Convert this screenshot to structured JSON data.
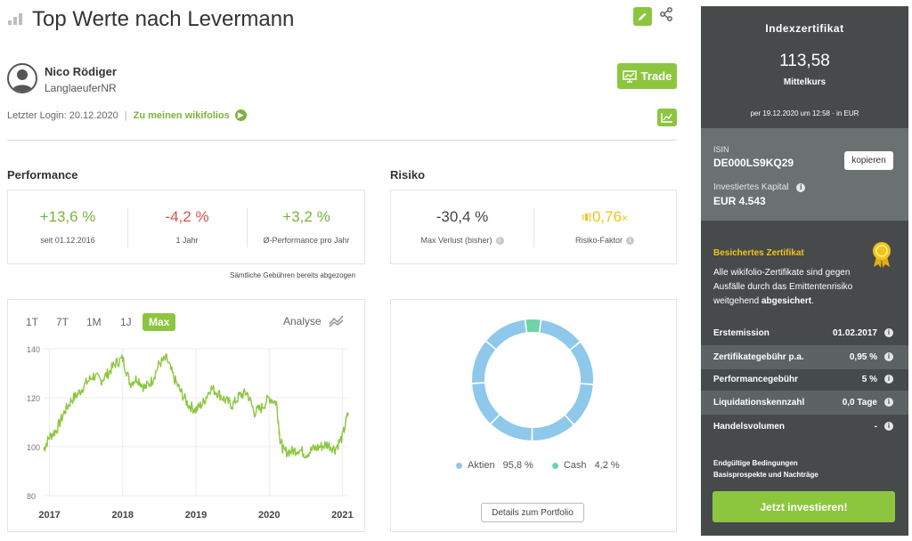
{
  "header": {
    "title": "Top Werte nach Levermann",
    "edit_icon": "pencil-icon",
    "share_icon": "share-icon"
  },
  "author": {
    "name": "Nico Rödiger",
    "handle": "LanglaeuferNR",
    "avatar_icon": "user-avatar-icon"
  },
  "trade_button": {
    "label": "Trade"
  },
  "login": {
    "text": "Letzter Login: 20.12.2020",
    "separator": "|",
    "link": "Zu meinen wikifolios"
  },
  "performance": {
    "heading": "Performance",
    "items": [
      {
        "value": "+13,6 %",
        "label": "seit 01.12.2016"
      },
      {
        "value": "-4,2 %",
        "label": "1 Jahr"
      },
      {
        "value": "+3,2 %",
        "label": "Ø-Performance pro Jahr"
      }
    ],
    "note": "Sämtliche Gebühren bereits abgezogen"
  },
  "risk": {
    "heading": "Risiko",
    "items": [
      {
        "value": "-30,4 %",
        "label": "Max Verlust (bisher)"
      },
      {
        "value": "0,76",
        "suffix": "×",
        "label": "Risiko-Faktor"
      }
    ]
  },
  "chart_controls": {
    "ranges": [
      "1T",
      "7T",
      "1M",
      "1J",
      "Max"
    ],
    "selected": "Max",
    "analyse": "Analyse"
  },
  "chart_data": [
    {
      "type": "line",
      "title": "",
      "xlabel": "",
      "ylabel": "",
      "x_ticks": [
        "2017",
        "2018",
        "2019",
        "2020",
        "2021"
      ],
      "y_ticks": [
        80,
        100,
        120,
        140
      ],
      "ylim": [
        80,
        140
      ],
      "xlim": [
        2016.92,
        2021.08
      ],
      "grid": true,
      "series": [
        {
          "color": "#8cc63f",
          "x": [
            2016.92,
            2017.0,
            2017.1,
            2017.2,
            2017.3,
            2017.4,
            2017.5,
            2017.6,
            2017.7,
            2017.8,
            2017.9,
            2018.0,
            2018.1,
            2018.2,
            2018.3,
            2018.4,
            2018.5,
            2018.6,
            2018.7,
            2018.8,
            2018.9,
            2019.0,
            2019.1,
            2019.2,
            2019.3,
            2019.4,
            2019.5,
            2019.6,
            2019.7,
            2019.8,
            2019.9,
            2020.0,
            2020.1,
            2020.15,
            2020.2,
            2020.3,
            2020.4,
            2020.5,
            2020.6,
            2020.7,
            2020.8,
            2020.9,
            2021.0,
            2021.08
          ],
          "values": [
            99,
            104,
            107,
            114,
            119,
            122,
            126,
            129,
            127,
            130,
            134,
            136,
            126,
            128,
            124,
            127,
            134,
            136,
            128,
            122,
            117,
            115,
            118,
            124,
            122,
            119,
            117,
            121,
            122,
            114,
            116,
            120,
            118,
            103,
            98,
            98,
            99,
            97,
            99,
            100,
            101,
            99,
            104,
            114
          ]
        }
      ]
    },
    {
      "type": "pie",
      "title": "",
      "labels": [
        "Aktien",
        "Cash"
      ],
      "values": [
        95.8,
        4.2
      ],
      "value_labels": [
        "95,8 %",
        "4,2 %"
      ],
      "colors": [
        "#8ec8ea",
        "#6fd3a8"
      ]
    }
  ],
  "portfolio": {
    "legend": [
      {
        "label": "Aktien",
        "value": "95,8 %",
        "color": "#8ec8ea"
      },
      {
        "label": "Cash",
        "value": "4,2 %",
        "color": "#6fd3a8"
      }
    ],
    "details_button": "Details zum Portfolio"
  },
  "certificate": {
    "title": "Indexzertifikat",
    "price": "113,58",
    "price_label": "Mittelkurs",
    "date": "per 19.12.2020 um 12:58 · in EUR",
    "isin_label": "ISIN",
    "isin": "DE000LS9KQ29",
    "copy_button": "kopieren",
    "capital_label": "Investiertes Kapital",
    "capital": "EUR 4.543",
    "secured_title": "Besichertes Zertifikat",
    "secured_text": "Alle wikifolio-Zertifikate sind gegen Ausfälle durch das Emittentenrisiko weitgehend",
    "secured_bold": "abgesichert",
    "secured_end": ".",
    "facts": [
      {
        "label": "Erstemission",
        "value": "01.02.2017"
      },
      {
        "label": "Zertifikategebühr p.a.",
        "value": "0,95 %"
      },
      {
        "label": "Performancegebühr",
        "value": "5 %"
      },
      {
        "label": "Liquidationskennzahl",
        "value": "0,0 Tage"
      },
      {
        "label": "Handelsvolumen",
        "value": "-"
      }
    ],
    "terms_link": "Endgültige Bedingungen",
    "prospect_link": "Basisprospekte und Nachträge",
    "invest_button": "Jetzt investieren!"
  },
  "colors": {
    "accent": "#8cc63f",
    "negative": "#e05050",
    "panel_dark": "#464a4b",
    "panel_mid": "#6b7171",
    "gold": "#f0c419"
  }
}
